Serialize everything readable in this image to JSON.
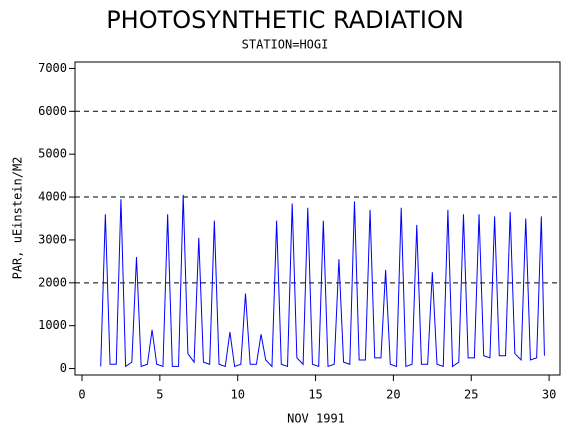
{
  "chart_data": {
    "type": "line",
    "title": "PHOTOSYNTHETIC RADIATION",
    "subtitle": "STATION=HOGI",
    "x_label": "NOV 1991",
    "y_label": "PAR, uEinstein/M2",
    "color": "#0000ff",
    "xlim": [
      -0.45,
      30.7
    ],
    "ylim": [
      -150,
      7150
    ],
    "xticks": [
      0,
      5,
      10,
      15,
      20,
      25,
      30
    ],
    "yticks": [
      0,
      1000,
      2000,
      3000,
      4000,
      5000,
      6000,
      7000
    ],
    "reference_lines": [
      2000,
      4000,
      6000
    ],
    "x": [
      1.2,
      1.5,
      1.8,
      2.2,
      2.5,
      2.8,
      3.2,
      3.5,
      3.8,
      4.2,
      4.5,
      4.8,
      5.2,
      5.5,
      5.8,
      6.2,
      6.5,
      6.8,
      7.2,
      7.5,
      7.8,
      8.2,
      8.5,
      8.8,
      9.2,
      9.5,
      9.8,
      10.2,
      10.5,
      10.8,
      11.2,
      11.5,
      11.8,
      12.2,
      12.5,
      12.8,
      13.2,
      13.5,
      13.8,
      14.2,
      14.5,
      14.8,
      15.2,
      15.5,
      15.8,
      16.2,
      16.5,
      16.8,
      17.2,
      17.5,
      17.8,
      18.2,
      18.5,
      18.8,
      19.2,
      19.5,
      19.8,
      20.2,
      20.5,
      20.8,
      21.2,
      21.5,
      21.8,
      22.2,
      22.5,
      22.8,
      23.2,
      23.5,
      23.8,
      24.2,
      24.5,
      24.8,
      25.2,
      25.5,
      25.8,
      26.2,
      26.5,
      26.8,
      27.2,
      27.5,
      27.8,
      28.2,
      28.5,
      28.8,
      29.2,
      29.5,
      29.7
    ],
    "values": [
      50,
      3600,
      100,
      100,
      3950,
      50,
      150,
      2600,
      50,
      100,
      900,
      100,
      50,
      3600,
      50,
      50,
      4050,
      350,
      150,
      3050,
      150,
      100,
      3450,
      100,
      50,
      850,
      50,
      100,
      1750,
      100,
      100,
      800,
      200,
      50,
      3450,
      100,
      50,
      3850,
      250,
      100,
      3750,
      100,
      50,
      3450,
      50,
      100,
      2550,
      150,
      100,
      3900,
      200,
      200,
      3700,
      250,
      250,
      2300,
      100,
      50,
      3750,
      50,
      100,
      3350,
      100,
      100,
      2250,
      100,
      50,
      3700,
      50,
      150,
      3600,
      250,
      250,
      3600,
      300,
      250,
      3550,
      300,
      300,
      3650,
      350,
      200,
      3500,
      200,
      250,
      3550,
      300
    ]
  }
}
